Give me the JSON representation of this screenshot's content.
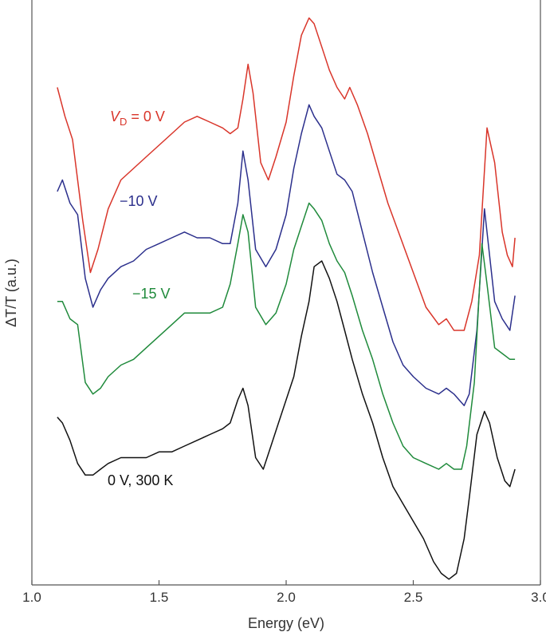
{
  "chart_data": {
    "type": "line",
    "title": "",
    "xlabel": "Energy (eV)",
    "ylabel": "ΔT/T (a.u.)",
    "xlim": [
      1.0,
      3.0
    ],
    "xticks": [
      "1.0",
      "1.5",
      "2.0",
      "2.5",
      "3.0"
    ],
    "yunits": "a.u. (offset traces)",
    "ylim": [
      0,
      100
    ],
    "series": [
      {
        "name": "VD = 0 V",
        "label_main": "V",
        "label_sub": "D",
        "label_rest": " = 0 V",
        "color": "#d9352a",
        "x": [
          1.1,
          1.13,
          1.16,
          1.2,
          1.23,
          1.26,
          1.3,
          1.35,
          1.4,
          1.45,
          1.5,
          1.55,
          1.6,
          1.65,
          1.7,
          1.75,
          1.78,
          1.81,
          1.83,
          1.85,
          1.87,
          1.9,
          1.93,
          1.96,
          2.0,
          2.03,
          2.06,
          2.09,
          2.11,
          2.14,
          2.17,
          2.2,
          2.23,
          2.25,
          2.28,
          2.32,
          2.36,
          2.4,
          2.45,
          2.5,
          2.55,
          2.6,
          2.63,
          2.66,
          2.7,
          2.73,
          2.76,
          2.79,
          2.82,
          2.85,
          2.87,
          2.89,
          2.9
        ],
        "y": [
          86,
          81,
          77,
          63,
          54,
          58,
          65,
          70,
          72,
          74,
          76,
          78,
          80,
          81,
          80,
          79,
          78,
          79,
          84,
          90,
          85,
          73,
          70,
          74,
          80,
          88,
          95,
          98,
          97,
          93,
          89,
          86,
          84,
          86,
          83,
          78,
          72,
          66,
          60,
          54,
          48,
          45,
          46,
          44,
          44,
          49,
          57,
          79,
          73,
          61,
          57,
          55,
          60
        ]
      },
      {
        "name": "−10 V",
        "color": "#2b2f8c",
        "x": [
          1.1,
          1.12,
          1.15,
          1.18,
          1.21,
          1.24,
          1.27,
          1.3,
          1.35,
          1.4,
          1.45,
          1.5,
          1.55,
          1.6,
          1.65,
          1.7,
          1.75,
          1.78,
          1.81,
          1.83,
          1.85,
          1.88,
          1.92,
          1.96,
          2.0,
          2.03,
          2.06,
          2.09,
          2.11,
          2.14,
          2.17,
          2.2,
          2.23,
          2.26,
          2.3,
          2.34,
          2.38,
          2.42,
          2.46,
          2.5,
          2.55,
          2.6,
          2.63,
          2.66,
          2.7,
          2.72,
          2.75,
          2.78,
          2.8,
          2.82,
          2.85,
          2.88,
          2.9
        ],
        "y": [
          68,
          70,
          66,
          64,
          53,
          48,
          51,
          53,
          55,
          56,
          58,
          59,
          60,
          61,
          60,
          60,
          59,
          59,
          66,
          75,
          70,
          58,
          55,
          58,
          64,
          72,
          78,
          83,
          81,
          79,
          75,
          71,
          70,
          68,
          61,
          54,
          48,
          42,
          38,
          36,
          34,
          33,
          34,
          33,
          31,
          33,
          44,
          65,
          57,
          49,
          46,
          44,
          50
        ]
      },
      {
        "name": "−15 V",
        "color": "#1f8a3b",
        "x": [
          1.1,
          1.12,
          1.15,
          1.18,
          1.21,
          1.24,
          1.27,
          1.3,
          1.35,
          1.4,
          1.45,
          1.5,
          1.55,
          1.6,
          1.65,
          1.7,
          1.75,
          1.78,
          1.81,
          1.83,
          1.85,
          1.88,
          1.92,
          1.96,
          2.0,
          2.03,
          2.06,
          2.09,
          2.11,
          2.14,
          2.17,
          2.2,
          2.23,
          2.26,
          2.3,
          2.34,
          2.38,
          2.42,
          2.46,
          2.5,
          2.55,
          2.6,
          2.63,
          2.66,
          2.69,
          2.71,
          2.74,
          2.77,
          2.79,
          2.82,
          2.85,
          2.88,
          2.9
        ],
        "y": [
          49,
          49,
          46,
          45,
          35,
          33,
          34,
          36,
          38,
          39,
          41,
          43,
          45,
          47,
          47,
          47,
          48,
          52,
          59,
          64,
          61,
          48,
          45,
          47,
          52,
          58,
          62,
          66,
          65,
          63,
          59,
          56,
          54,
          50,
          44,
          39,
          33,
          28,
          24,
          22,
          21,
          20,
          21,
          20,
          20,
          24,
          35,
          59,
          52,
          41,
          40,
          39,
          39
        ]
      },
      {
        "name": "0 V, 300 K",
        "color": "#111111",
        "x": [
          1.1,
          1.12,
          1.15,
          1.18,
          1.21,
          1.24,
          1.27,
          1.3,
          1.35,
          1.4,
          1.45,
          1.5,
          1.55,
          1.6,
          1.65,
          1.7,
          1.75,
          1.78,
          1.81,
          1.83,
          1.85,
          1.88,
          1.91,
          1.94,
          1.97,
          2.0,
          2.03,
          2.06,
          2.09,
          2.11,
          2.14,
          2.17,
          2.2,
          2.23,
          2.26,
          2.3,
          2.34,
          2.38,
          2.42,
          2.46,
          2.5,
          2.54,
          2.58,
          2.61,
          2.64,
          2.67,
          2.7,
          2.72,
          2.75,
          2.78,
          2.8,
          2.83,
          2.86,
          2.88,
          2.9
        ],
        "y": [
          29,
          28,
          25,
          21,
          19,
          19,
          20,
          21,
          22,
          22,
          22,
          23,
          23,
          24,
          25,
          26,
          27,
          28,
          32,
          34,
          31,
          22,
          20,
          24,
          28,
          32,
          36,
          43,
          49,
          55,
          56,
          53,
          49,
          44,
          39,
          33,
          28,
          22,
          17,
          14,
          11,
          8,
          4,
          2,
          1,
          2,
          8,
          15,
          26,
          30,
          28,
          22,
          18,
          17,
          20
        ]
      }
    ]
  }
}
